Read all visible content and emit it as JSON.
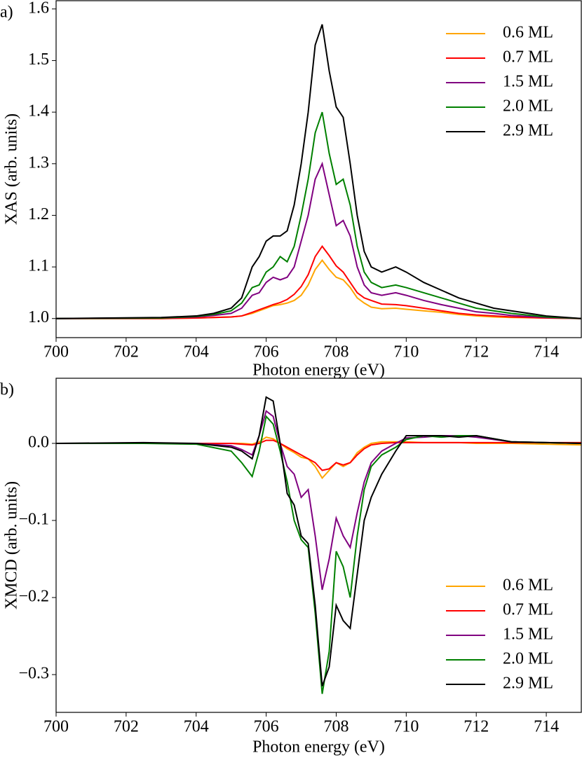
{
  "chart_data": [
    {
      "type": "line",
      "label": "a)",
      "x_label": "Photon energy (eV)",
      "y_label": "XAS (arb. units)",
      "x": [
        700,
        703,
        704,
        704.5,
        705,
        705.3,
        705.6,
        705.8,
        706,
        706.2,
        706.4,
        706.6,
        706.8,
        707,
        707.2,
        707.4,
        707.6,
        707.8,
        708,
        708.2,
        708.4,
        708.6,
        708.8,
        709,
        709.3,
        709.7,
        710,
        710.5,
        711,
        711.5,
        712,
        712.5,
        713,
        714,
        715
      ],
      "series": [
        {
          "name": "0.6 ML",
          "color": "#ffa500",
          "values": [
            1,
            1,
            1.001,
            1.002,
            1.003,
            1.005,
            1.01,
            1.015,
            1.02,
            1.025,
            1.027,
            1.03,
            1.035,
            1.045,
            1.065,
            1.095,
            1.113,
            1.095,
            1.08,
            1.075,
            1.06,
            1.04,
            1.03,
            1.022,
            1.019,
            1.02,
            1.018,
            1.015,
            1.012,
            1.008,
            1.005,
            1.003,
            1.002,
            1.001,
            1
          ]
        },
        {
          "name": "0.7 ML",
          "color": "#ff0000",
          "values": [
            1,
            1,
            1.001,
            1.002,
            1.003,
            1.005,
            1.012,
            1.017,
            1.022,
            1.027,
            1.031,
            1.037,
            1.047,
            1.062,
            1.085,
            1.12,
            1.14,
            1.122,
            1.102,
            1.09,
            1.07,
            1.05,
            1.04,
            1.035,
            1.028,
            1.027,
            1.025,
            1.02,
            1.015,
            1.01,
            1.007,
            1.005,
            1.003,
            1.001,
            1
          ]
        },
        {
          "name": "1.5 ML",
          "color": "#800080",
          "values": [
            1,
            1.001,
            1.003,
            1.006,
            1.01,
            1.02,
            1.045,
            1.05,
            1.07,
            1.08,
            1.075,
            1.08,
            1.1,
            1.15,
            1.2,
            1.27,
            1.3,
            1.24,
            1.18,
            1.19,
            1.16,
            1.1,
            1.065,
            1.05,
            1.045,
            1.05,
            1.045,
            1.035,
            1.027,
            1.02,
            1.013,
            1.01,
            1.006,
            1.002,
            1
          ]
        },
        {
          "name": "2.0 ML",
          "color": "#008000",
          "values": [
            1,
            1.001,
            1.004,
            1.008,
            1.015,
            1.03,
            1.06,
            1.065,
            1.09,
            1.1,
            1.12,
            1.11,
            1.14,
            1.2,
            1.27,
            1.36,
            1.4,
            1.32,
            1.26,
            1.27,
            1.22,
            1.14,
            1.09,
            1.07,
            1.06,
            1.065,
            1.06,
            1.05,
            1.04,
            1.03,
            1.02,
            1.015,
            1.01,
            1.003,
            1
          ]
        },
        {
          "name": "2.9 ML",
          "color": "#000000",
          "values": [
            1,
            1.002,
            1.005,
            1.01,
            1.02,
            1.04,
            1.1,
            1.12,
            1.15,
            1.16,
            1.16,
            1.17,
            1.22,
            1.3,
            1.4,
            1.53,
            1.57,
            1.48,
            1.41,
            1.39,
            1.3,
            1.2,
            1.13,
            1.1,
            1.09,
            1.1,
            1.09,
            1.07,
            1.055,
            1.04,
            1.03,
            1.02,
            1.015,
            1.005,
            1
          ]
        }
      ],
      "xlim": [
        700,
        715
      ],
      "xticks": [
        700,
        702,
        704,
        706,
        708,
        710,
        712,
        714
      ],
      "ylim": [
        0.963,
        1.616
      ],
      "yticks": [
        {
          "value": 1,
          "label": "1.0"
        },
        1.1,
        1.2,
        1.3,
        1.4,
        1.5,
        1.6
      ],
      "legend": "upper right"
    },
    {
      "type": "line",
      "label": "b)",
      "x_label": "Photon energy (eV)",
      "y_label": "XMCD (arb. units)",
      "x": [
        700,
        702.5,
        704,
        705,
        705.3,
        705.6,
        705.8,
        706,
        706.2,
        706.4,
        706.6,
        706.8,
        707,
        707.2,
        707.4,
        707.6,
        707.8,
        708,
        708.2,
        708.4,
        708.6,
        708.8,
        709,
        709.3,
        709.7,
        710,
        710.5,
        711,
        711.5,
        712,
        713,
        715
      ],
      "series": [
        {
          "name": "0.6 ML",
          "color": "#ffa500",
          "values": [
            0,
            0,
            0,
            0,
            0,
            -0.001,
            0.002,
            0.008,
            0.006,
            0,
            -0.007,
            -0.012,
            -0.018,
            -0.02,
            -0.03,
            -0.045,
            -0.035,
            -0.025,
            -0.03,
            -0.025,
            -0.012,
            -0.005,
            0,
            0.002,
            0.002,
            0.002,
            0.001,
            0.001,
            0.001,
            0,
            0,
            -0.002
          ]
        },
        {
          "name": "0.7 ML",
          "color": "#ff0000",
          "values": [
            0,
            0,
            0,
            0,
            -0.001,
            -0.002,
            0,
            0.004,
            0.004,
            0,
            -0.005,
            -0.01,
            -0.015,
            -0.02,
            -0.025,
            -0.035,
            -0.033,
            -0.025,
            -0.028,
            -0.025,
            -0.015,
            -0.007,
            -0.002,
            0,
            0.001,
            0.001,
            0.001,
            0.001,
            0.001,
            0.001,
            0.001,
            0.001
          ]
        },
        {
          "name": "1.5 ML",
          "color": "#800080",
          "values": [
            0,
            0,
            0,
            -0.003,
            -0.008,
            -0.015,
            0.01,
            0.042,
            0.035,
            0,
            -0.03,
            -0.04,
            -0.07,
            -0.06,
            -0.12,
            -0.19,
            -0.15,
            -0.097,
            -0.12,
            -0.135,
            -0.09,
            -0.05,
            -0.025,
            -0.01,
            0,
            0.007,
            0.008,
            0.01,
            0.01,
            0.008,
            0.002,
            0
          ]
        },
        {
          "name": "2.0 ML",
          "color": "#008000",
          "values": [
            0,
            0,
            -0.001,
            -0.01,
            -0.025,
            -0.043,
            -0.01,
            0.035,
            0.025,
            -0.01,
            -0.05,
            -0.1,
            -0.125,
            -0.135,
            -0.22,
            -0.325,
            -0.27,
            -0.14,
            -0.16,
            -0.2,
            -0.12,
            -0.06,
            -0.03,
            -0.015,
            -0.005,
            0.005,
            0.01,
            0.008,
            0.01,
            0.01,
            0.002,
            0
          ]
        },
        {
          "name": "2.9 ML",
          "color": "#000000",
          "values": [
            0,
            0.001,
            0,
            -0.005,
            -0.01,
            -0.02,
            0.01,
            0.06,
            0.055,
            0,
            -0.065,
            -0.08,
            -0.12,
            -0.13,
            -0.21,
            -0.315,
            -0.29,
            -0.21,
            -0.23,
            -0.24,
            -0.17,
            -0.1,
            -0.07,
            -0.04,
            -0.01,
            0.01,
            0.01,
            0.01,
            0.008,
            0.01,
            0.002,
            0
          ]
        }
      ],
      "xlim": [
        700,
        715
      ],
      "xticks": [
        700,
        702,
        704,
        706,
        708,
        710,
        712,
        714
      ],
      "ylim": [
        -0.349,
        0.0845
      ],
      "yticks": [
        {
          "value": -0.3,
          "label": "−0.3"
        },
        {
          "value": -0.2,
          "label": "−0.2"
        },
        {
          "value": -0.1,
          "label": "−0.1"
        },
        {
          "value": 0,
          "label": "0.0"
        }
      ],
      "legend": "lower right"
    }
  ]
}
